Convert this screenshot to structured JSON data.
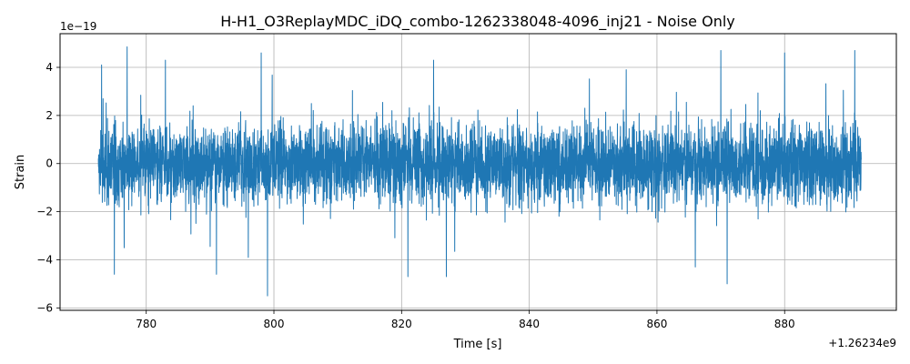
{
  "chart_data": {
    "type": "line",
    "title": "H-H1_O3ReplayMDC_iDQ_combo-1262338048-4096_inj21 - Noise Only",
    "xlabel": "Time [s]",
    "ylabel": "Strain",
    "x_offset_label": "+1.26234e9",
    "y_scale_label": "1e−19",
    "xlim": [
      766.5,
      897.5
    ],
    "ylim": [
      -6.1,
      5.4
    ],
    "x_ticks": [
      780,
      800,
      820,
      840,
      860,
      880
    ],
    "x_tick_labels": [
      "780",
      "800",
      "820",
      "840",
      "860",
      "880"
    ],
    "y_ticks": [
      -6,
      -4,
      -2,
      0,
      2,
      4
    ],
    "y_tick_labels": [
      "−6",
      "−4",
      "−2",
      "0",
      "2",
      "4"
    ],
    "grid": true,
    "series_color": "#1f77b4",
    "series": [
      {
        "x_range": [
          772.5,
          892.0
        ],
        "y_range": [
          -5.5,
          4.85
        ],
        "typical_amplitude": 1.0,
        "peaks": [
          {
            "x": 773.0,
            "y": 4.1
          },
          {
            "x": 777.0,
            "y": 4.85
          },
          {
            "x": 783.0,
            "y": 4.3
          },
          {
            "x": 798.0,
            "y": 4.6
          },
          {
            "x": 825.0,
            "y": 4.3
          },
          {
            "x": 870.0,
            "y": 4.7
          },
          {
            "x": 880.0,
            "y": 4.6
          },
          {
            "x": 891.0,
            "y": 4.7
          }
        ],
        "troughs": [
          {
            "x": 775.0,
            "y": -4.6
          },
          {
            "x": 791.0,
            "y": -4.6
          },
          {
            "x": 799.0,
            "y": -5.5
          },
          {
            "x": 821.0,
            "y": -4.7
          },
          {
            "x": 827.0,
            "y": -4.7
          },
          {
            "x": 866.0,
            "y": -4.3
          },
          {
            "x": 871.0,
            "y": -5.0
          }
        ]
      }
    ]
  }
}
